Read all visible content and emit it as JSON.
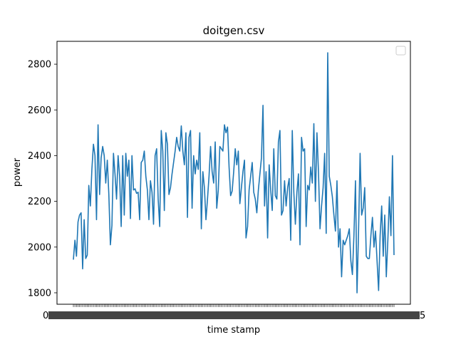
{
  "chart_data": {
    "type": "line",
    "title": "doitgen.csv",
    "xlabel": "time stamp",
    "ylabel": "power",
    "ylim": [
      1750,
      2900
    ],
    "yticks": [
      1800,
      2000,
      2200,
      2400,
      2600,
      2800
    ],
    "grid": false,
    "legend": "top-right",
    "color": "#1f77b4",
    "x_tick_label_first": "0",
    "x_tick_label_last": "5",
    "series": [
      {
        "values": [
          1945,
          2030,
          1960,
          2110,
          2140,
          2150,
          1905,
          2120,
          1950,
          1965,
          2270,
          2180,
          2340,
          2450,
          2400,
          2120,
          2535,
          2230,
          2390,
          2440,
          2400,
          2280,
          2380,
          2230,
          2010,
          2095,
          2410,
          2320,
          2210,
          2400,
          2310,
          2090,
          2400,
          2140,
          2410,
          2310,
          2380,
          2125,
          2400,
          2250,
          2255,
          2235,
          2240,
          2120,
          2370,
          2380,
          2420,
          2310,
          2250,
          2120,
          2290,
          2240,
          2100,
          2400,
          2430,
          2210,
          2090,
          2510,
          2420,
          2160,
          2500,
          2450,
          2230,
          2260,
          2320,
          2370,
          2420,
          2480,
          2440,
          2420,
          2530,
          2420,
          2360,
          2500,
          2130,
          2480,
          2510,
          2170,
          2400,
          2320,
          2380,
          2340,
          2500,
          2080,
          2330,
          2260,
          2120,
          2210,
          2310,
          2440,
          2330,
          2280,
          2460,
          2170,
          2250,
          2440,
          2430,
          2420,
          2535,
          2500,
          2525,
          2350,
          2225,
          2245,
          2330,
          2430,
          2360,
          2420,
          2190,
          2260,
          2330,
          2380,
          2040,
          2090,
          2250,
          2310,
          2370,
          2240,
          2210,
          2150,
          2250,
          2320,
          2390,
          2620,
          2180,
          2330,
          2040,
          2360,
          2250,
          2160,
          2430,
          2225,
          2210,
          2460,
          2510,
          2140,
          2160,
          2290,
          2180,
          2260,
          2300,
          2030,
          2510,
          2240,
          2100,
          2240,
          2320,
          2010,
          2480,
          2420,
          2430,
          2090,
          2270,
          2250,
          2350,
          2280,
          2540,
          2200,
          2500,
          2330,
          2080,
          2180,
          2260,
          2410,
          2060,
          2850,
          2310,
          2270,
          2220,
          2140,
          2070,
          2290,
          2000,
          2080,
          1870,
          2030,
          2010,
          2030,
          2050,
          2080,
          1940,
          1880,
          2050,
          2290,
          1800,
          2070,
          2410,
          2140,
          2170,
          2260,
          1960,
          1950,
          1950,
          2050,
          2130,
          2000,
          2070,
          1940,
          1810,
          2050,
          2180,
          1960,
          2140,
          1870,
          2030,
          2220,
          2050,
          2400,
          1965
        ]
      }
    ]
  }
}
